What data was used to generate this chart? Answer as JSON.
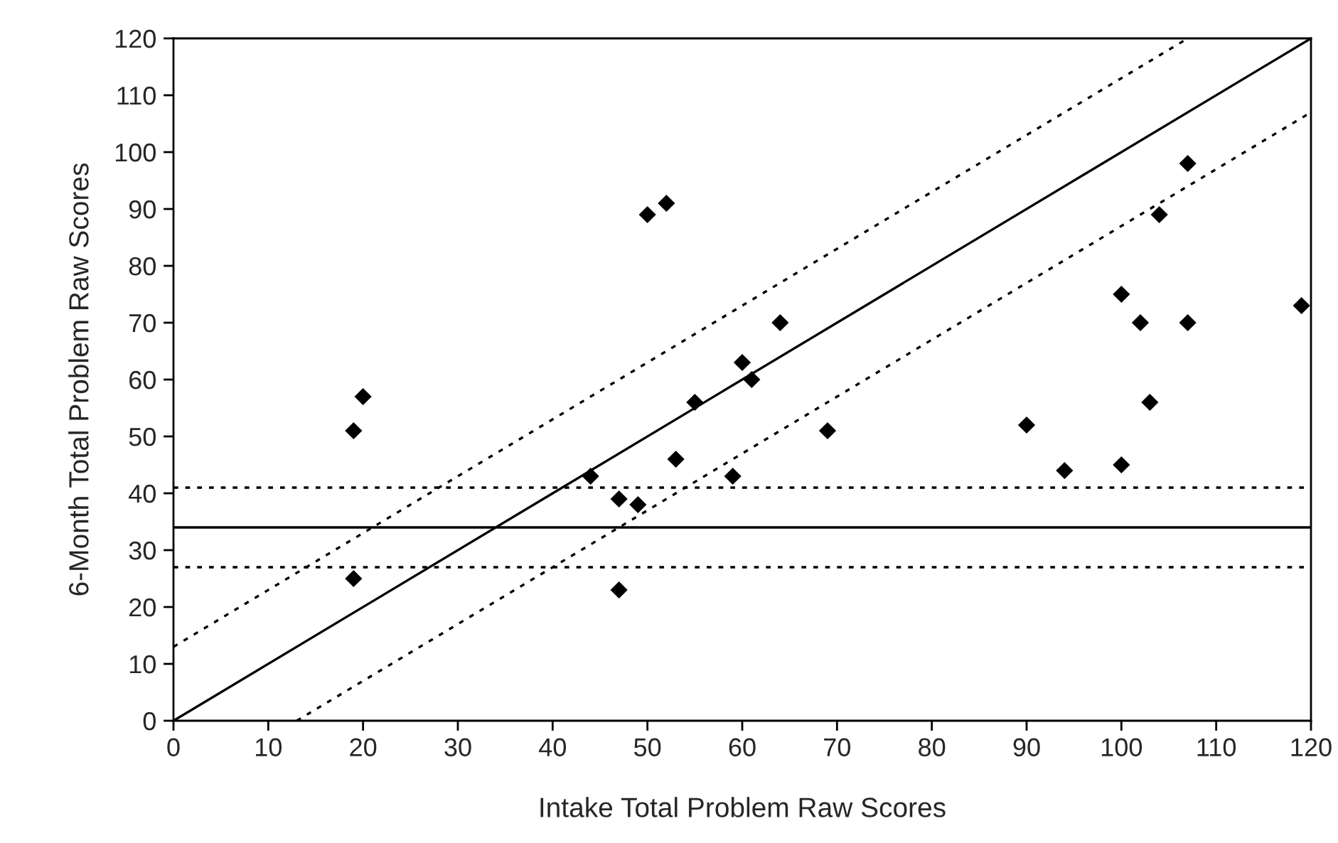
{
  "chart_data": {
    "type": "scatter",
    "xlabel": "Intake Total Problem Raw Scores",
    "ylabel": "6-Month Total Problem Raw Scores",
    "xlim": [
      0,
      120
    ],
    "ylim": [
      0,
      120
    ],
    "xticks": [
      0,
      10,
      20,
      30,
      40,
      50,
      60,
      70,
      80,
      90,
      100,
      110,
      120
    ],
    "yticks": [
      0,
      10,
      20,
      30,
      40,
      50,
      60,
      70,
      80,
      90,
      100,
      110,
      120
    ],
    "grid": false,
    "legend": false,
    "series": [
      {
        "marker": "diamond",
        "color": "#000000",
        "x": [
          19,
          20,
          19,
          44,
          47,
          49,
          47,
          50,
          52,
          53,
          55,
          59,
          60,
          61,
          64,
          69,
          90,
          94,
          100,
          100,
          102,
          103,
          104,
          107,
          107,
          119
        ],
        "values": [
          51,
          57,
          25,
          43,
          39,
          38,
          23,
          89,
          91,
          46,
          56,
          43,
          63,
          60,
          70,
          51,
          52,
          44,
          75,
          45,
          70,
          56,
          89,
          98,
          70,
          73
        ]
      },
      {
        "type": "line",
        "marker": "none",
        "color": "#000000",
        "line_style": "solid",
        "x": [
          0,
          120
        ],
        "values": [
          0,
          120
        ]
      },
      {
        "type": "line",
        "marker": "none",
        "color": "#000000",
        "line_style": "dotted",
        "x": [
          0,
          107
        ],
        "values": [
          13,
          120
        ]
      },
      {
        "type": "line",
        "marker": "none",
        "color": "#000000",
        "line_style": "dotted",
        "x": [
          13,
          120
        ],
        "values": [
          0,
          107
        ]
      }
    ],
    "ref_lines": [
      {
        "axis": "y",
        "value": 34,
        "color": "#000000",
        "line_style": "solid"
      },
      {
        "axis": "y",
        "value": 41,
        "color": "#000000",
        "line_style": "dotted"
      },
      {
        "axis": "y",
        "value": 27,
        "color": "#000000",
        "line_style": "dotted"
      }
    ]
  }
}
